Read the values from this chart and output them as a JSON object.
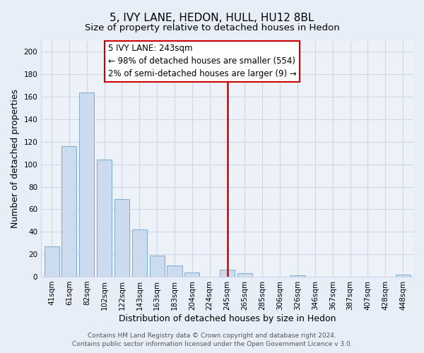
{
  "title": "5, IVY LANE, HEDON, HULL, HU12 8BL",
  "subtitle": "Size of property relative to detached houses in Hedon",
  "xlabel": "Distribution of detached houses by size in Hedon",
  "ylabel": "Number of detached properties",
  "bar_labels": [
    "41sqm",
    "61sqm",
    "82sqm",
    "102sqm",
    "122sqm",
    "143sqm",
    "163sqm",
    "183sqm",
    "204sqm",
    "224sqm",
    "245sqm",
    "265sqm",
    "285sqm",
    "306sqm",
    "326sqm",
    "346sqm",
    "367sqm",
    "387sqm",
    "407sqm",
    "428sqm",
    "448sqm"
  ],
  "bar_values": [
    27,
    116,
    164,
    104,
    69,
    42,
    19,
    10,
    4,
    0,
    6,
    3,
    0,
    0,
    1,
    0,
    0,
    0,
    0,
    0,
    2
  ],
  "bar_color": "#ccdcee",
  "bar_edge_color": "#7aadd0",
  "vline_color": "#cc0000",
  "annotation_line1": "5 IVY LANE: 243sqm",
  "annotation_line2": "← 98% of detached houses are smaller (554)",
  "annotation_line3": "2% of semi-detached houses are larger (9) →",
  "annotation_box_facecolor": "#ffffff",
  "annotation_box_edgecolor": "#cc0000",
  "ylim": [
    0,
    210
  ],
  "yticks": [
    0,
    20,
    40,
    60,
    80,
    100,
    120,
    140,
    160,
    180,
    200
  ],
  "footer1": "Contains HM Land Registry data © Crown copyright and database right 2024.",
  "footer2": "Contains public sector information licensed under the Open Government Licence v 3.0.",
  "background_color": "#e8eef8",
  "grid_color": "#d0d8e8",
  "plot_bg_color": "#edf2f9",
  "title_fontsize": 11,
  "subtitle_fontsize": 9.5,
  "axis_label_fontsize": 9,
  "tick_fontsize": 7.5,
  "annotation_fontsize": 8.5,
  "footer_fontsize": 6.5
}
